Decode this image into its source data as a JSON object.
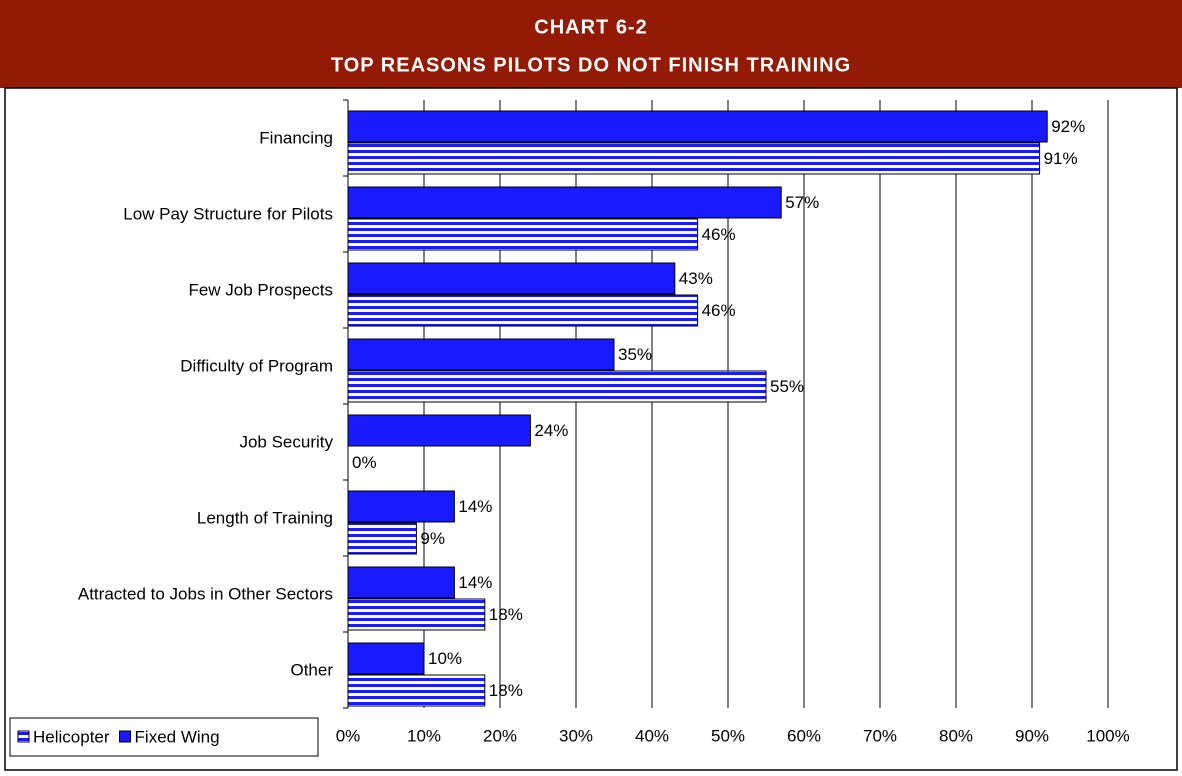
{
  "chart_data": {
    "type": "barh",
    "title": "CHART 6-2",
    "subtitle": "TOP REASONS PILOTS DO NOT FINISH TRAINING",
    "categories": [
      "Financing",
      "Low Pay Structure for Pilots",
      "Few Job Prospects",
      "Difficulty of Program",
      "Job Security",
      "Length of Training",
      "Attracted to Jobs in Other Sectors",
      "Other"
    ],
    "series": [
      {
        "name": "Helicopter",
        "color": "#1a1aff",
        "pattern": "horizontal-stripes",
        "values": [
          91,
          46,
          46,
          55,
          0,
          9,
          18,
          18
        ],
        "value_labels": [
          "91%",
          "46%",
          "46%",
          "55%",
          "0%",
          "9%",
          "18%",
          "18%"
        ]
      },
      {
        "name": "Fixed Wing",
        "color": "#1a1aff",
        "pattern": "solid",
        "values": [
          92,
          57,
          43,
          35,
          24,
          14,
          14,
          10
        ],
        "value_labels": [
          "92%",
          "57%",
          "43%",
          "35%",
          "24%",
          "14%",
          "14%",
          "10%"
        ]
      }
    ],
    "xlim": [
      0,
      100
    ],
    "xticks": [
      {
        "value": 0,
        "label": "0%"
      },
      {
        "value": 10,
        "label": "10%"
      },
      {
        "value": 20,
        "label": "20%"
      },
      {
        "value": 30,
        "label": "30%"
      },
      {
        "value": 40,
        "label": "40%"
      },
      {
        "value": 50,
        "label": "50%"
      },
      {
        "value": 60,
        "label": "60%"
      },
      {
        "value": 70,
        "label": "70%"
      },
      {
        "value": 80,
        "label": "80%"
      },
      {
        "value": 90,
        "label": "90%"
      },
      {
        "value": 100,
        "label": "100%"
      }
    ],
    "grid": true,
    "legend": "bottom-left"
  }
}
